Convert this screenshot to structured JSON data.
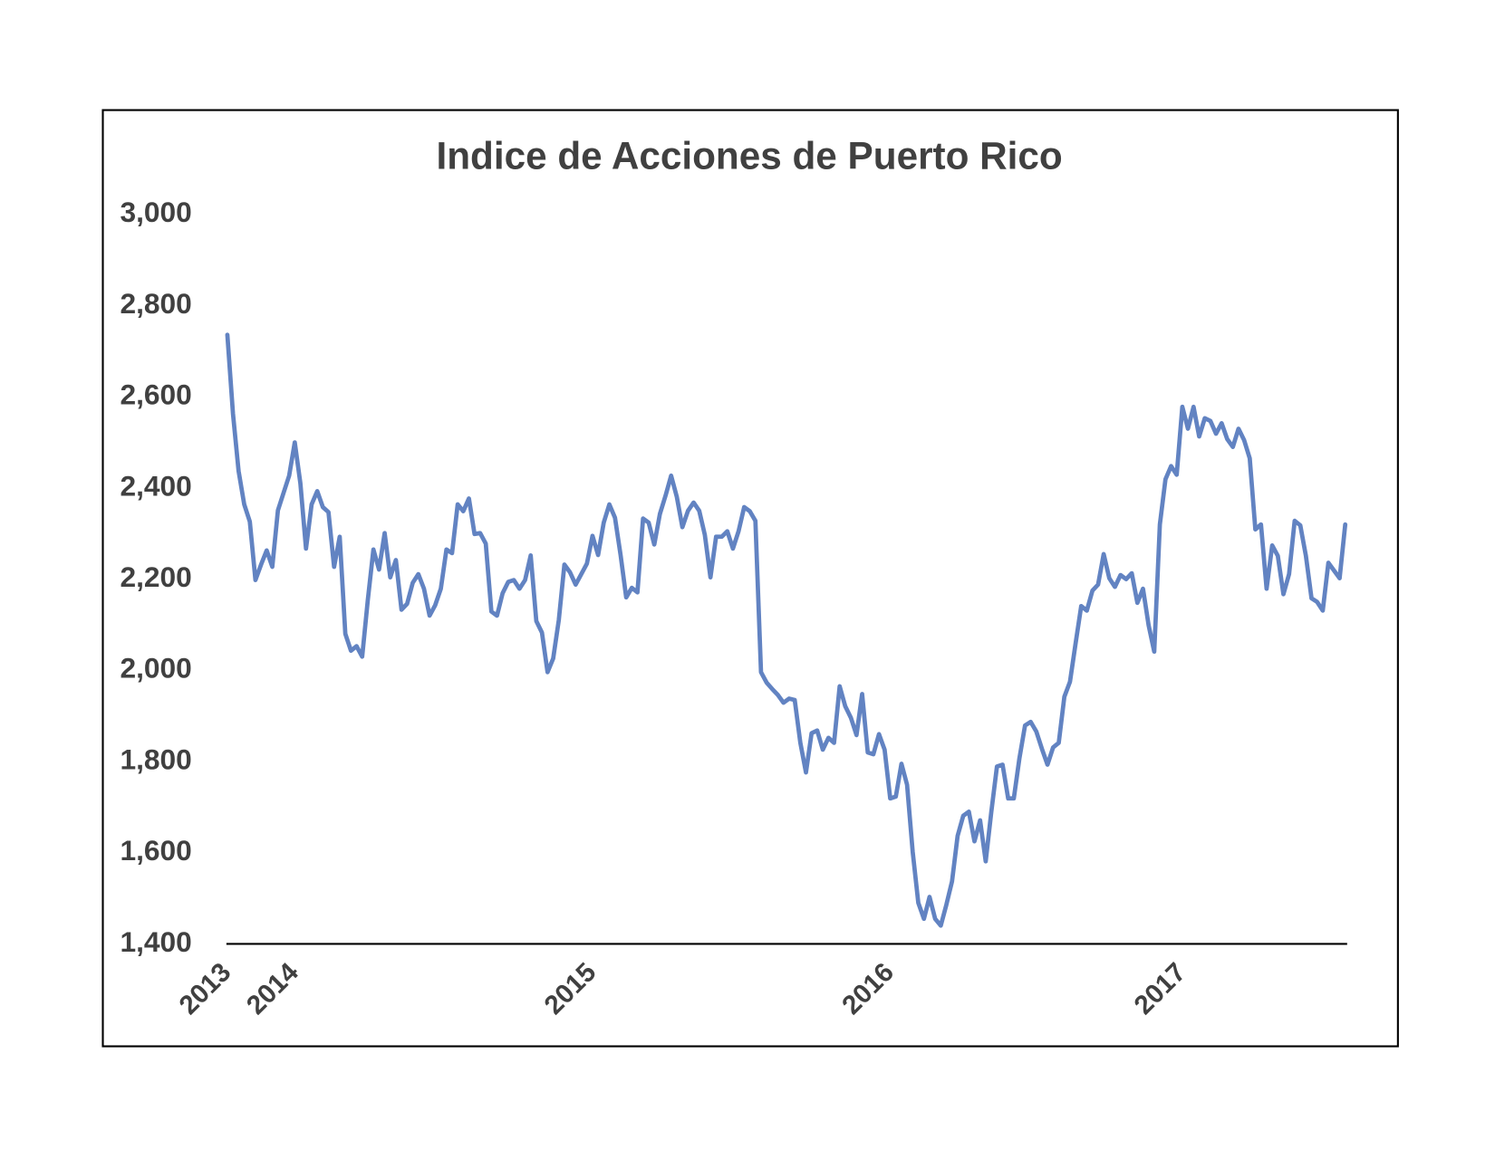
{
  "chart_data": {
    "type": "line",
    "title": "Indice de Acciones de Puerto Rico",
    "color": "#6283c2",
    "x": [
      0,
      1,
      2,
      3,
      4,
      5,
      6,
      7,
      8,
      9,
      10,
      11,
      12,
      13,
      14,
      15,
      16,
      17,
      18,
      19,
      20,
      21,
      22,
      23,
      24,
      25,
      26,
      27,
      28,
      29,
      30,
      31,
      32,
      33,
      34,
      35,
      36,
      37,
      38,
      39,
      40,
      41,
      42,
      43,
      44,
      45,
      46,
      47,
      48,
      49,
      50,
      51,
      52,
      53,
      54,
      55,
      56,
      57,
      58,
      59,
      60,
      61,
      62,
      63,
      64,
      65,
      66,
      67,
      68,
      69,
      70,
      71,
      72,
      73,
      74,
      75,
      76,
      77,
      78,
      79,
      80,
      81,
      82,
      83,
      84,
      85,
      86,
      87,
      88,
      89,
      90,
      91,
      92,
      93,
      94,
      95,
      96,
      97,
      98,
      99,
      100,
      101,
      102,
      103,
      104,
      105,
      106,
      107,
      108,
      109,
      110,
      111,
      112,
      113,
      114,
      115,
      116,
      117,
      118,
      119,
      120,
      121,
      122,
      123,
      124,
      125,
      126,
      127,
      128,
      129,
      130,
      131,
      132,
      133,
      134,
      135,
      136,
      137,
      138,
      139,
      140,
      141,
      142,
      143,
      144,
      145,
      146,
      147,
      148,
      149,
      150,
      151,
      152,
      153,
      154,
      155,
      156,
      157,
      158,
      159,
      160,
      161,
      162,
      163,
      164,
      165,
      166,
      167,
      168,
      169,
      170,
      171,
      172,
      173,
      174,
      175,
      176,
      177,
      178,
      179,
      180,
      181,
      182,
      183,
      184,
      185,
      186,
      187,
      188,
      189,
      190,
      191,
      192,
      193,
      194,
      195,
      196,
      197,
      198,
      199
    ],
    "values": [
      2736,
      2563,
      2437,
      2364,
      2326,
      2198,
      2232,
      2263,
      2227,
      2351,
      2389,
      2427,
      2500,
      2410,
      2267,
      2364,
      2393,
      2358,
      2347,
      2227,
      2293,
      2080,
      2043,
      2053,
      2030,
      2154,
      2265,
      2221,
      2301,
      2204,
      2242,
      2133,
      2146,
      2192,
      2211,
      2179,
      2120,
      2143,
      2179,
      2265,
      2257,
      2364,
      2349,
      2377,
      2299,
      2301,
      2278,
      2129,
      2120,
      2169,
      2194,
      2198,
      2179,
      2198,
      2252,
      2108,
      2083,
      1996,
      2026,
      2110,
      2232,
      2215,
      2188,
      2211,
      2234,
      2295,
      2253,
      2324,
      2364,
      2335,
      2253,
      2160,
      2181,
      2171,
      2333,
      2324,
      2276,
      2343,
      2383,
      2427,
      2381,
      2314,
      2350,
      2368,
      2350,
      2297,
      2204,
      2293,
      2293,
      2305,
      2267,
      2305,
      2358,
      2349,
      2328,
      1996,
      1973,
      1959,
      1946,
      1929,
      1938,
      1935,
      1841,
      1776,
      1862,
      1868,
      1826,
      1852,
      1841,
      1965,
      1921,
      1896,
      1858,
      1948,
      1820,
      1816,
      1860,
      1826,
      1719,
      1723,
      1795,
      1749,
      1602,
      1490,
      1455,
      1503,
      1455,
      1440,
      1486,
      1537,
      1637,
      1681,
      1690,
      1625,
      1671,
      1581,
      1690,
      1789,
      1793,
      1719,
      1719,
      1807,
      1879,
      1887,
      1866,
      1828,
      1793,
      1831,
      1841,
      1942,
      1975,
      2059,
      2141,
      2131,
      2175,
      2188,
      2255,
      2202,
      2183,
      2209,
      2200,
      2213,
      2148,
      2179,
      2099,
      2041,
      2320,
      2419,
      2448,
      2429,
      2578,
      2530,
      2578,
      2513,
      2553,
      2547,
      2519,
      2542,
      2507,
      2490,
      2530,
      2505,
      2465,
      2309,
      2320,
      2179,
      2274,
      2251,
      2167,
      2211,
      2328,
      2318,
      2251,
      2158,
      2150,
      2131,
      2236,
      2219,
      2202,
      2320
    ],
    "xlim": [
      0,
      199
    ],
    "xticks": [
      {
        "value": 0,
        "label": "2013"
      },
      {
        "value": 12,
        "label": "2014"
      },
      {
        "value": 65,
        "label": "2015"
      },
      {
        "value": 118,
        "label": "2016"
      },
      {
        "value": 170,
        "label": "2017"
      }
    ],
    "ylim": [
      1400,
      3000
    ],
    "yticks": [
      {
        "value": 1400,
        "label": "1,400"
      },
      {
        "value": 1600,
        "label": "1,600"
      },
      {
        "value": 1800,
        "label": "1,800"
      },
      {
        "value": 2000,
        "label": "2,000"
      },
      {
        "value": 2200,
        "label": "2,200"
      },
      {
        "value": 2400,
        "label": "2,400"
      },
      {
        "value": 2600,
        "label": "2,600"
      },
      {
        "value": 2800,
        "label": "2,800"
      },
      {
        "value": 3000,
        "label": "3,000"
      }
    ],
    "grid": false
  }
}
